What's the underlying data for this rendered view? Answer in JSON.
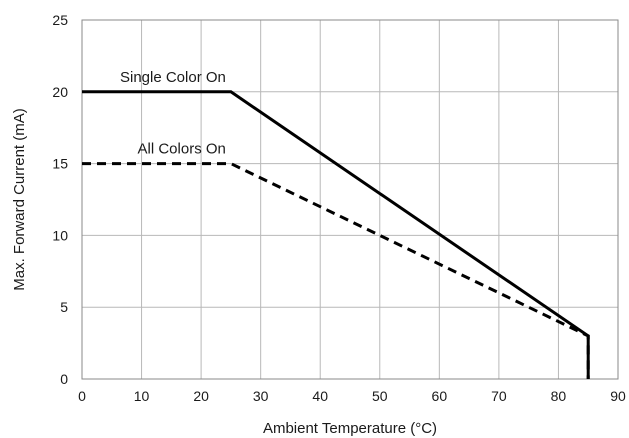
{
  "chart_data": {
    "type": "line",
    "xlabel": "Ambient Temperature (°C)",
    "ylabel": "Max. Forward Current (mA)",
    "xlim": [
      0,
      90
    ],
    "ylim": [
      0,
      25
    ],
    "x_ticks": [
      0,
      10,
      20,
      30,
      40,
      50,
      60,
      70,
      80,
      90
    ],
    "y_ticks": [
      0,
      5,
      10,
      15,
      20,
      25
    ],
    "grid": true,
    "legend": "none",
    "series": [
      {
        "name": "Single Color On",
        "style": "solid",
        "color": "#000000",
        "points": [
          [
            0,
            20
          ],
          [
            25,
            20
          ],
          [
            85,
            3
          ],
          [
            85,
            0
          ]
        ]
      },
      {
        "name": "All Colors On",
        "style": "dashed",
        "color": "#000000",
        "points": [
          [
            0,
            15
          ],
          [
            25,
            15
          ],
          [
            85,
            3
          ],
          [
            85,
            0
          ]
        ]
      }
    ],
    "annotations": [
      {
        "text_ref": 0,
        "x": 25,
        "y": 20
      },
      {
        "text_ref": 1,
        "x": 25,
        "y": 15
      }
    ]
  }
}
